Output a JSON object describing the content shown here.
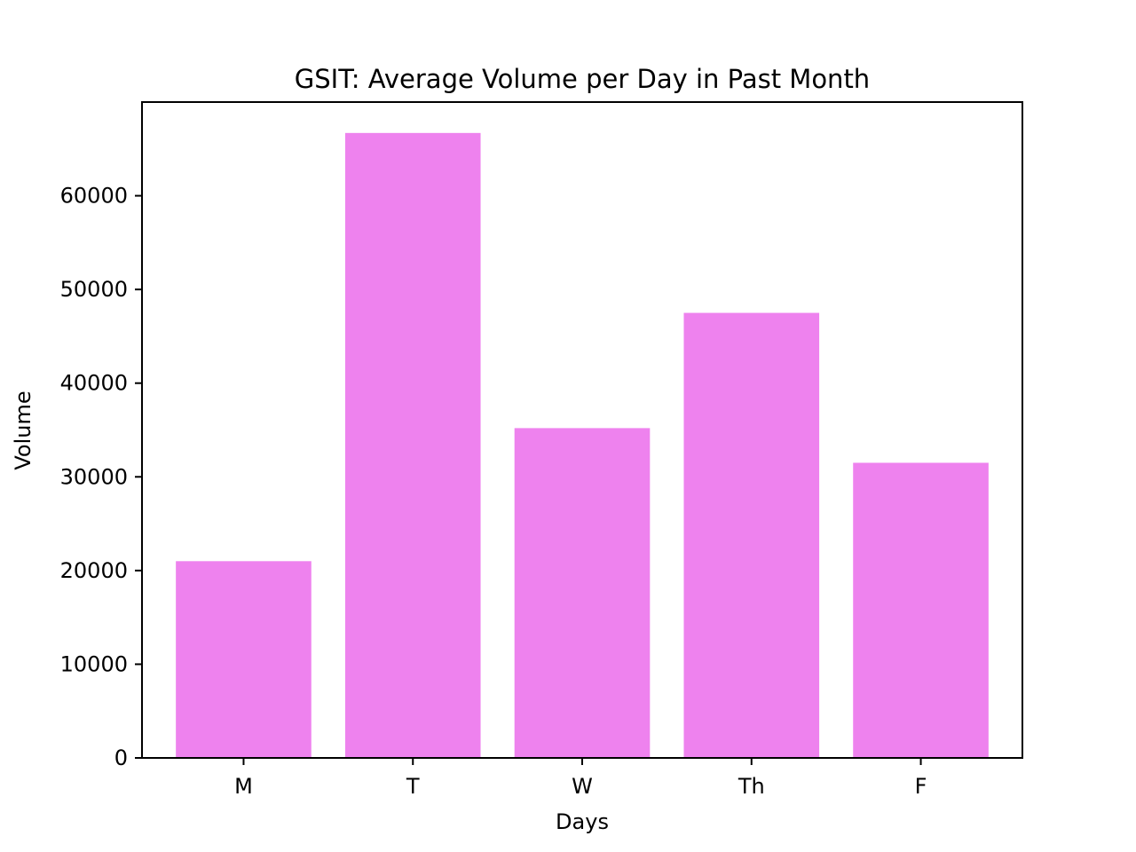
{
  "chart_data": {
    "type": "bar",
    "title": "GSIT: Average Volume per Day in Past Month",
    "xlabel": "Days",
    "ylabel": "Volume",
    "categories": [
      "M",
      "T",
      "W",
      "Th",
      "F"
    ],
    "values": [
      21000,
      66700,
      35200,
      47500,
      31500
    ],
    "ylim": [
      0,
      70000
    ],
    "yticks": [
      0,
      10000,
      20000,
      30000,
      40000,
      50000,
      60000
    ],
    "bar_color": "#ee82ee",
    "grid": false,
    "legend": "none"
  }
}
